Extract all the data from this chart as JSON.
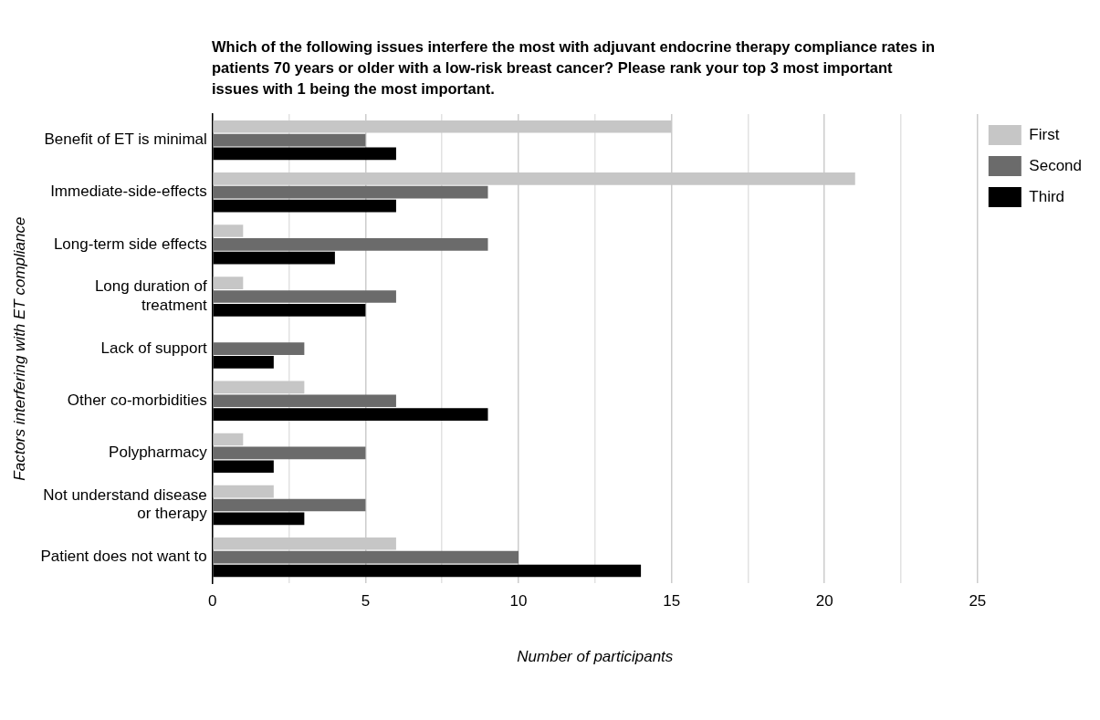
{
  "chart_data": {
    "type": "bar",
    "orientation": "horizontal",
    "title": "Which of the following issues interfere the most with adjuvant endocrine therapy compliance rates in patients 70 years or older with a low-risk breast cancer? Please rank your top 3 most important issues with 1 being the most important.",
    "xlabel": "Number of participants",
    "ylabel": "Factors interfering with ET compliance",
    "categories": [
      "Benefit of ET is minimal",
      "Immediate-side-effects",
      "Long-term side effects",
      "Long duration of treatment",
      "Lack of support",
      "Other co-morbidities",
      "Polypharmacy",
      "Not understand disease or therapy",
      "Patient does not want to"
    ],
    "series": [
      {
        "name": "First",
        "color": "#c6c6c6",
        "values": [
          15,
          21,
          1,
          1,
          0,
          3,
          1,
          2,
          6
        ]
      },
      {
        "name": "Second",
        "color": "#6b6b6b",
        "values": [
          5,
          9,
          9,
          6,
          3,
          6,
          5,
          5,
          10
        ]
      },
      {
        "name": "Third",
        "color": "#000000",
        "values": [
          6,
          6,
          4,
          5,
          2,
          9,
          2,
          3,
          14
        ]
      }
    ],
    "xlim": [
      0,
      25
    ],
    "xticks": [
      0,
      {
        "value": 2.5,
        "label": null
      },
      5,
      {
        "value": 7.5,
        "label": null
      },
      10,
      {
        "value": 12.5,
        "label": null
      },
      15,
      {
        "value": 17.5,
        "label": null
      },
      20,
      {
        "value": 22.5,
        "label": null
      },
      25
    ],
    "grid": "x",
    "legend": "top right"
  }
}
